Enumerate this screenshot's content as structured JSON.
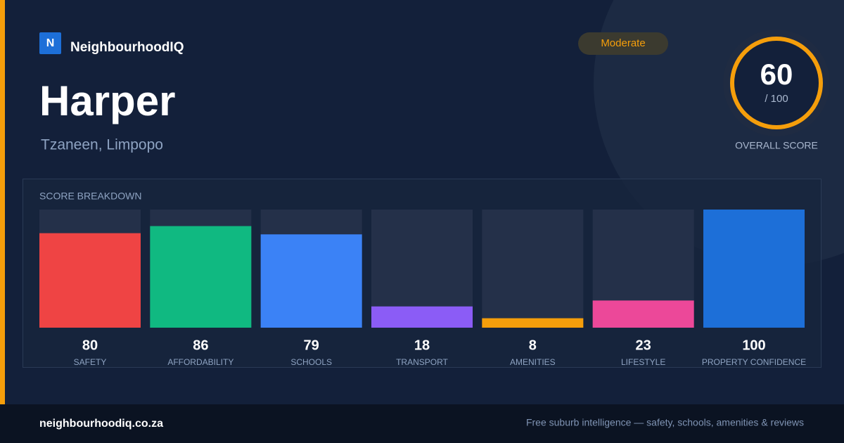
{
  "header": {
    "logo_letter": "N",
    "brand": "NeighbourhoodIQ",
    "badge": "Moderate"
  },
  "place": {
    "name": "Harper",
    "location": "Tzaneen, Limpopo"
  },
  "overall": {
    "score": 60,
    "out_of": "/ 100",
    "label": "OVERALL SCORE"
  },
  "chart_data": {
    "type": "bar",
    "title": "SCORE BREAKDOWN",
    "categories": [
      "SAFETY",
      "AFFORDABILITY",
      "SCHOOLS",
      "TRANSPORT",
      "AMENITIES",
      "LIFESTYLE",
      "PROPERTY CONFIDENCE"
    ],
    "values": [
      80,
      86,
      79,
      18,
      8,
      23,
      100
    ],
    "colors": [
      "#ef4444",
      "#10b981",
      "#3b82f6",
      "#8b5cf6",
      "#f59e0b",
      "#ec4899",
      "#1d6fd8"
    ],
    "ylim": [
      0,
      100
    ]
  },
  "footer": {
    "url": "neighbourhoodiq.co.za",
    "tagline": "Free suburb intelligence — safety, schools, amenities & reviews"
  }
}
